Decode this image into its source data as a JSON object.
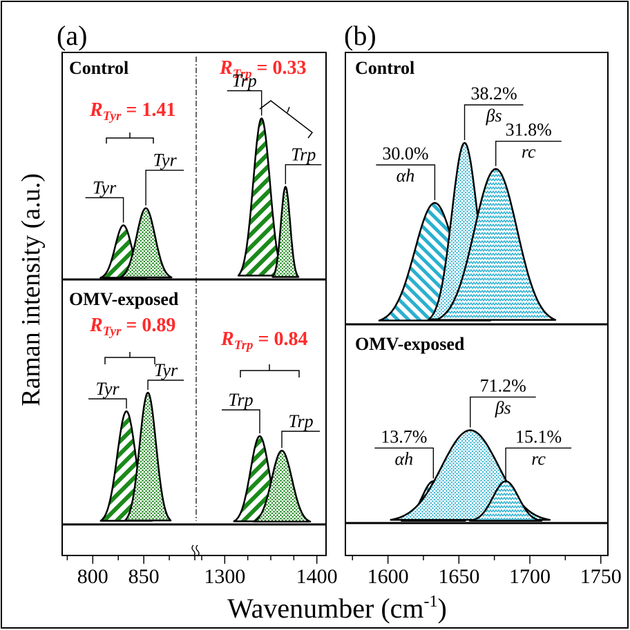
{
  "figure": {
    "ylabel": "Raman intensity (a.u.)",
    "xlabel_main": "Wavenumber (cm",
    "xlabel_sup": "-1",
    "xlabel_end": ")"
  },
  "chart_data": [
    {
      "type": "area",
      "panel_label": "(a)",
      "xlabel": "Wavenumber (cm-1)",
      "ylabel": "Raman intensity (a.u.)",
      "broken_x_axis": true,
      "x_segments": [
        {
          "xlim": [
            770,
            900
          ],
          "ticks": [
            800,
            850
          ]
        },
        {
          "xlim": [
            1275,
            1410
          ],
          "ticks": [
            1300,
            1400
          ]
        }
      ],
      "subplots": [
        {
          "condition": "Control",
          "ratios": [
            {
              "symbol": "R",
              "sub": "Tyr",
              "value": "1.41"
            },
            {
              "symbol": "R",
              "sub": "Trp",
              "value": "0.33"
            }
          ],
          "peaks": [
            {
              "label": "Tyr",
              "center": 830,
              "height": 0.25,
              "width": 8,
              "fill": "hatch"
            },
            {
              "label": "Tyr",
              "center": 852,
              "height": 0.33,
              "width": 9,
              "fill": "dots"
            },
            {
              "label": "Trp",
              "center": 1340,
              "height": 0.75,
              "width": 9,
              "fill": "hatch"
            },
            {
              "label": "Trp",
              "center": 1366,
              "height": 0.43,
              "width": 5,
              "fill": "dots"
            }
          ]
        },
        {
          "condition": "OMV-exposed",
          "ratios": [
            {
              "symbol": "R",
              "sub": "Tyr",
              "value": "0.89"
            },
            {
              "symbol": "R",
              "sub": "Trp",
              "value": "0.84"
            }
          ],
          "peaks": [
            {
              "label": "Tyr",
              "center": 833,
              "height": 0.54,
              "width": 9,
              "fill": "hatch"
            },
            {
              "label": "Tyr",
              "center": 854,
              "height": 0.63,
              "width": 8,
              "fill": "dots"
            },
            {
              "label": "Trp",
              "center": 1338,
              "height": 0.42,
              "width": 10,
              "fill": "hatch"
            },
            {
              "label": "Trp",
              "center": 1362,
              "height": 0.35,
              "width": 11,
              "fill": "dots"
            }
          ]
        }
      ]
    },
    {
      "type": "area",
      "panel_label": "(b)",
      "xlabel": "Wavenumber (cm-1)",
      "xlim": [
        1570,
        1755
      ],
      "ticks": [
        1600,
        1650,
        1700,
        1750
      ],
      "subplots": [
        {
          "condition": "Control",
          "peaks": [
            {
              "label": "αh",
              "percent": "30.0%",
              "center": 1633,
              "height": 0.6,
              "width": 14,
              "fill": "hatch"
            },
            {
              "label": "βs",
              "percent": "38.2%",
              "center": 1654,
              "height": 0.9,
              "width": 9,
              "fill": "dots"
            },
            {
              "label": "rc",
              "percent": "31.8%",
              "center": 1676,
              "height": 0.77,
              "width": 15,
              "fill": "zigzag"
            }
          ]
        },
        {
          "condition": "OMV-exposed",
          "peaks": [
            {
              "label": "αh",
              "percent": "13.7%",
              "center": 1632,
              "height": 0.23,
              "width": 8,
              "fill": "hatch"
            },
            {
              "label": "βs",
              "percent": "71.2%",
              "center": 1658,
              "height": 0.52,
              "width": 20,
              "fill": "dots"
            },
            {
              "label": "rc",
              "percent": "15.1%",
              "center": 1683,
              "height": 0.23,
              "width": 9,
              "fill": "zigzag"
            }
          ]
        }
      ]
    }
  ],
  "colors": {
    "green_fill": "#1a8a1a",
    "cyan_fill": "#2ab0cf",
    "ratio_text": "#ff2a2a",
    "outline": "#000000"
  }
}
